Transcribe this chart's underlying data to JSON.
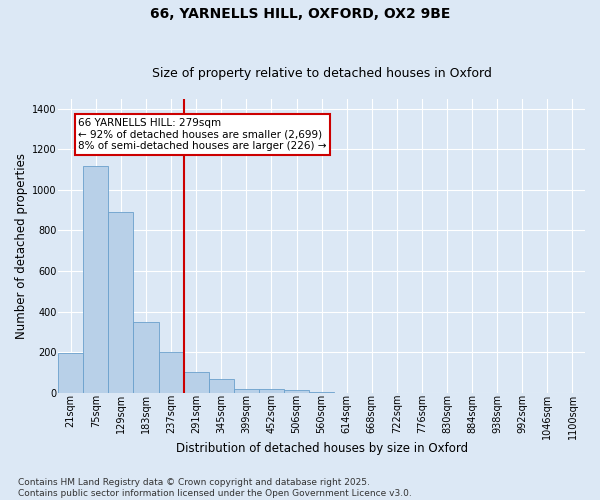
{
  "title1": "66, YARNELLS HILL, OXFORD, OX2 9BE",
  "title2": "Size of property relative to detached houses in Oxford",
  "xlabel": "Distribution of detached houses by size in Oxford",
  "ylabel": "Number of detached properties",
  "categories": [
    "21sqm",
    "75sqm",
    "129sqm",
    "183sqm",
    "237sqm",
    "291sqm",
    "345sqm",
    "399sqm",
    "452sqm",
    "506sqm",
    "560sqm",
    "614sqm",
    "668sqm",
    "722sqm",
    "776sqm",
    "830sqm",
    "884sqm",
    "938sqm",
    "992sqm",
    "1046sqm",
    "1100sqm"
  ],
  "values": [
    195,
    1120,
    890,
    350,
    200,
    100,
    65,
    20,
    18,
    12,
    5,
    0,
    0,
    0,
    0,
    0,
    0,
    0,
    0,
    0,
    0
  ],
  "bar_color": "#b8d0e8",
  "bar_edge_color": "#6aa0cc",
  "vline_index": 5,
  "vline_color": "#cc0000",
  "annotation_text": "66 YARNELLS HILL: 279sqm\n← 92% of detached houses are smaller (2,699)\n8% of semi-detached houses are larger (226) →",
  "annotation_box_color": "#cc0000",
  "ylim": [
    0,
    1450
  ],
  "yticks": [
    0,
    200,
    400,
    600,
    800,
    1000,
    1200,
    1400
  ],
  "footer": "Contains HM Land Registry data © Crown copyright and database right 2025.\nContains public sector information licensed under the Open Government Licence v3.0.",
  "bg_color": "#dce8f5",
  "plot_bg_color": "#dce8f5",
  "grid_color": "#ffffff",
  "title_fontsize": 10,
  "subtitle_fontsize": 9,
  "axis_label_fontsize": 8.5,
  "tick_fontsize": 7,
  "footer_fontsize": 6.5,
  "annotation_fontsize": 7.5
}
